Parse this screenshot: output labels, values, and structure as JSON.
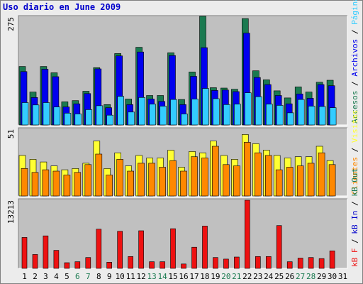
{
  "chart_data": {
    "type": "bar",
    "title": "Uso diario en June 2009",
    "categories": [
      "1",
      "2",
      "3",
      "4",
      "5",
      "6",
      "7",
      "8",
      "9",
      "10",
      "11",
      "12",
      "13",
      "14",
      "15",
      "16",
      "17",
      "18",
      "19",
      "20",
      "21",
      "22",
      "23",
      "24",
      "25",
      "26",
      "27",
      "28",
      "29",
      "30",
      "31"
    ],
    "weekend_categories": [
      "6",
      "7",
      "13",
      "14",
      "20",
      "21",
      "27",
      "28"
    ],
    "colors": {
      "accesos": "#1a7a50",
      "archivos": "#0000ee",
      "paginas": "#33ccff",
      "visitas": "#ffff33",
      "clientes": "#ff8800",
      "kb_f": "#ee1111",
      "kb_in": "#0000cc",
      "kb_out": "#1a7a50",
      "weekday_tick": "#000000",
      "weekend_tick": "#1a7a50",
      "panel_bg": "#c0c0c0"
    },
    "panels": [
      {
        "id": "hits",
        "ymax_label": "275",
        "ymax": 275,
        "series": [
          {
            "key": "accesos",
            "values": [
              149,
              84,
              149,
              133,
              59,
              62,
              86,
              146,
              52,
              182,
              66,
              198,
              75,
              75,
              184,
              65,
              135,
              277,
              95,
              94,
              91,
              271,
              138,
              115,
              87,
              69,
              97,
              84,
              109,
              114,
              0
            ]
          },
          {
            "key": "archivos",
            "values": [
              136,
              70,
              142,
              123,
              46,
              54,
              80,
              143,
              44,
              176,
              52,
              186,
              66,
              60,
              177,
              52,
              124,
              197,
              88,
              89,
              85,
              234,
              121,
              103,
              75,
              54,
              79,
              68,
              103,
              100,
              0
            ]
          },
          {
            "key": "paginas",
            "values": [
              57,
              51,
              57,
              46,
              30,
              28,
              39,
              49,
              25,
              73,
              33,
              70,
              53,
              48,
              65,
              28,
              66,
              93,
              67,
              52,
              53,
              82,
              72,
              53,
              50,
              31,
              65,
              48,
              47,
              44,
              0
            ]
          }
        ],
        "side_labels": [
          {
            "key": "accesos",
            "text": "Accesos"
          },
          {
            "key": "archivos",
            "text": "Archivos"
          },
          {
            "key": "paginas",
            "text": "Páginas"
          }
        ]
      },
      {
        "id": "visits",
        "ymax_label": "51",
        "ymax": 51,
        "series": [
          {
            "key": "visitas",
            "values": [
              31,
              28,
              26,
              23,
              20,
              21,
              25,
              42,
              21,
              33,
              23,
              31,
              29,
              29,
              35,
              22,
              34,
              33,
              42,
              31,
              28,
              47,
              40,
              35,
              31,
              29,
              30,
              30,
              38,
              27,
              0
            ]
          },
          {
            "key": "clientes",
            "values": [
              21,
              18,
              20,
              19,
              16,
              18,
              24,
              32,
              16,
              28,
              19,
              25,
              25,
              22,
              27,
              19,
              30,
              29,
              38,
              24,
              23,
              41,
              33,
              31,
              20,
              22,
              23,
              25,
              33,
              24,
              0
            ]
          }
        ],
        "side_labels": [
          {
            "key": "clientes",
            "text": "Clientes"
          },
          {
            "key": "visitas",
            "text": "Visitas"
          }
        ]
      },
      {
        "id": "kbytes",
        "ymax_label": "13213",
        "ymax": 13213,
        "series": [
          {
            "key": "kb_f",
            "values": [
              6000,
              2700,
              6300,
              3500,
              1100,
              1300,
              2100,
              7600,
              1200,
              7200,
              2300,
              7300,
              1300,
              1300,
              7700,
              860,
              4100,
              8200,
              2100,
              1800,
              2200,
              13213,
              2300,
              2300,
              8300,
              1300,
              2000,
              2100,
              1900,
              3400,
              0
            ]
          }
        ],
        "side_labels": [
          {
            "key": "kb_f",
            "text": "kB F"
          },
          {
            "key": "kb_in",
            "text": "kB In"
          },
          {
            "key": "kb_out",
            "text": "kB Out"
          }
        ]
      }
    ]
  }
}
